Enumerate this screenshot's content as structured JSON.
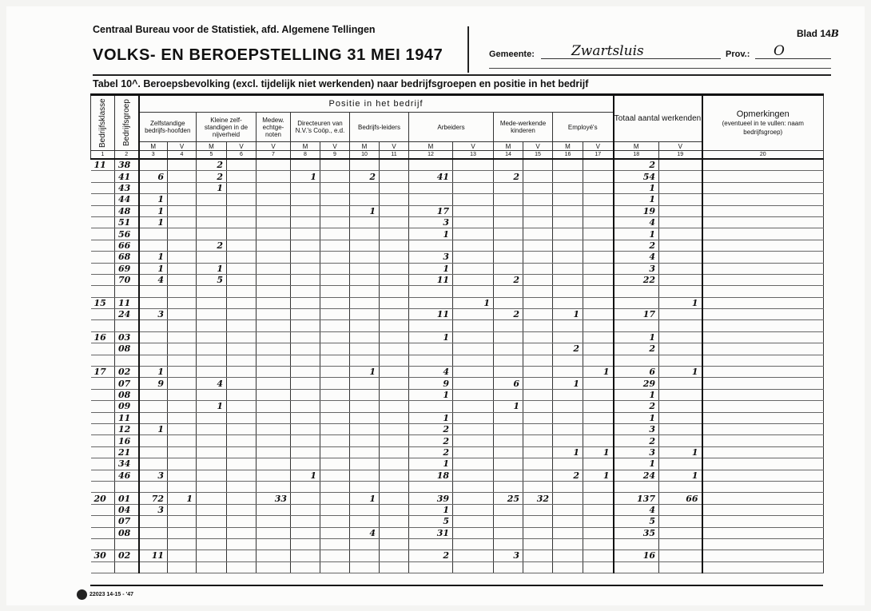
{
  "header": {
    "organisation": "Centraal Bureau voor de Statistiek, afd. Algemene Tellingen",
    "title": "VOLKS- EN BEROEPSTELLING 31 MEI 1947",
    "blad_label": "Blad 14",
    "blad_suffix": "B",
    "gemeente_label": "Gemeente:",
    "gemeente_value": "Zwartsluis",
    "prov_label": "Prov.:",
    "prov_value": "O",
    "table_title": "Tabel 10^.  Beroepsbevolking (excl. tijdelijk niet werkenden) naar bedrijfsgroepen en positie in het bedrijf"
  },
  "columns": {
    "bedrijfsklasse": "Bedrijfsklasse",
    "bedrijfsgroep": "Bedrijfsgroep",
    "positie": "Positie in het bedrijf",
    "groups": [
      "Zelfstandige bedrijfs-hoofden",
      "Kleine zelf-standigen in de nijverheid",
      "Medew. echtge-noten",
      "Directeuren van N.V.'s Coöp., e.d.",
      "Bedrijfs-leiders",
      "Arbeiders",
      "Mede-werkende kinderen",
      "Employé's"
    ],
    "totaal": "Totaal aantal werkenden",
    "opmerkingen": "Opmerkingen",
    "opmerkingen_note": "(eventueel in te vullen: naam bedrijfsgroep)",
    "m": "M",
    "v": "V",
    "numbers": [
      "1",
      "2",
      "3",
      "4",
      "5",
      "6",
      "7",
      "8",
      "9",
      "10",
      "11",
      "12",
      "13",
      "14",
      "15",
      "16",
      "17",
      "18",
      "19",
      "20"
    ]
  },
  "rows": [
    {
      "k": "11",
      "g": "38",
      "c5": "2",
      "c18": "2"
    },
    {
      "g": "41",
      "c3": "6",
      "c5": "2",
      "c8": "1",
      "c10": "2",
      "c12": "41",
      "c14": "2",
      "c18": "54"
    },
    {
      "g": "43",
      "c5": "1",
      "c18": "1"
    },
    {
      "g": "44",
      "c3": "1",
      "c18": "1"
    },
    {
      "g": "48",
      "c3": "1",
      "c10": "1",
      "c12": "17",
      "c18": "19"
    },
    {
      "g": "51",
      "c3": "1",
      "c12": "3",
      "c18": "4"
    },
    {
      "g": "56",
      "c12": "1",
      "c18": "1"
    },
    {
      "g": "66",
      "c5": "2",
      "c18": "2"
    },
    {
      "g": "68",
      "c3": "1",
      "c12": "3",
      "c18": "4"
    },
    {
      "g": "69",
      "c3": "1",
      "c5": "1",
      "c12": "1",
      "c18": "3"
    },
    {
      "g": "70",
      "c3": "4",
      "c5": "5",
      "c12": "11",
      "c14": "2",
      "c18": "22"
    },
    {},
    {
      "k": "15",
      "g": "11",
      "c13": "1",
      "c19": "1"
    },
    {
      "g": "24",
      "c3": "3",
      "c12": "11",
      "c14": "2",
      "c16": "1",
      "c18": "17"
    },
    {},
    {
      "k": "16",
      "g": "03",
      "c12": "1",
      "c18": "1"
    },
    {
      "g": "08",
      "c16": "2",
      "c18": "2"
    },
    {},
    {
      "k": "17",
      "g": "02",
      "c3": "1",
      "c10": "1",
      "c12": "4",
      "c17": "1",
      "c18": "6",
      "c19": "1"
    },
    {
      "g": "07",
      "c3": "9",
      "c5": "4",
      "c12": "9",
      "c14": "6",
      "c16": "1",
      "c18": "29"
    },
    {
      "g": "08",
      "c12": "1",
      "c18": "1"
    },
    {
      "g": "09",
      "c5": "1",
      "c14": "1",
      "c18": "2"
    },
    {
      "g": "11",
      "c12": "1",
      "c18": "1"
    },
    {
      "g": "12",
      "c3": "1",
      "c12": "2",
      "c18": "3"
    },
    {
      "g": "16",
      "c12": "2",
      "c18": "2"
    },
    {
      "g": "21",
      "c12": "2",
      "c16": "1",
      "c17": "1",
      "c18": "3",
      "c19": "1"
    },
    {
      "g": "34",
      "c12": "1",
      "c18": "1"
    },
    {
      "g": "46",
      "c3": "3",
      "c8": "1",
      "c12": "18",
      "c16": "2",
      "c17": "1",
      "c18": "24",
      "c19": "1"
    },
    {},
    {
      "k": "20",
      "g": "01",
      "c3": "72",
      "c4": "1",
      "c7": "33",
      "c10": "1",
      "c12": "39",
      "c14": "25",
      "c15": "32",
      "c18": "137",
      "c19": "66"
    },
    {
      "g": "04",
      "c3": "3",
      "c12": "1",
      "c18": "4"
    },
    {
      "g": "07",
      "c12": "5",
      "c18": "5"
    },
    {
      "g": "08",
      "c10": "4",
      "c12": "31",
      "c18": "35"
    },
    {},
    {
      "k": "30",
      "g": "02",
      "c3": "11",
      "c12": "2",
      "c14": "3",
      "c18": "16"
    },
    {}
  ],
  "footer": {
    "print_code": "22023 14-15 - '47",
    "logo_icon": "printer-logo"
  }
}
